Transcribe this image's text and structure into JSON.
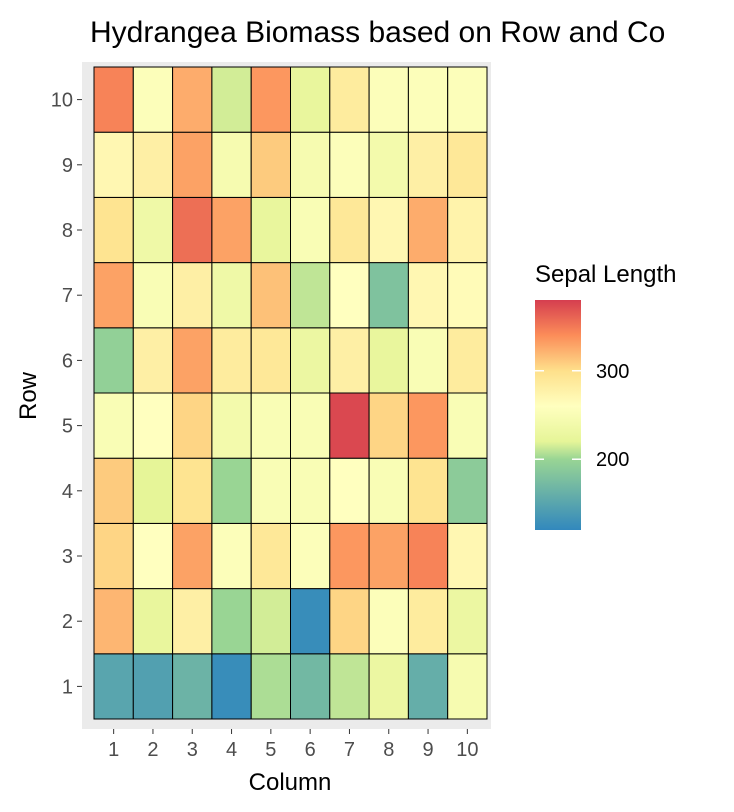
{
  "chart_data": {
    "type": "heatmap",
    "title": "Hydrangea Biomass based on Row and Co",
    "xlabel": "Column",
    "ylabel": "Row",
    "x_categories": [
      "1",
      "2",
      "3",
      "4",
      "5",
      "6",
      "7",
      "8",
      "9",
      "10"
    ],
    "y_categories": [
      "1",
      "2",
      "3",
      "4",
      "5",
      "6",
      "7",
      "8",
      "9",
      "10"
    ],
    "legend": {
      "title": "Sepal Length",
      "ticks": [
        200,
        300
      ],
      "range": [
        120,
        380
      ],
      "position": "right",
      "colors": [
        "#3288bd",
        "#99d594",
        "#e6f598",
        "#ffffbf",
        "#fee08b",
        "#fc8d59",
        "#d53e4f"
      ]
    },
    "panel_background": "#ebebeb",
    "rows": [
      {
        "row": "1",
        "values": [
          150,
          145,
          165,
          125,
          205,
          170,
          210,
          230,
          160,
          245
        ]
      },
      {
        "row": "2",
        "values": [
          320,
          225,
          280,
          200,
          215,
          125,
          305,
          255,
          285,
          230
        ]
      },
      {
        "row": "3",
        "values": [
          305,
          260,
          330,
          255,
          290,
          255,
          335,
          330,
          345,
          270
        ]
      },
      {
        "row": "4",
        "values": [
          310,
          220,
          295,
          200,
          250,
          250,
          260,
          250,
          295,
          190
        ]
      },
      {
        "row": "5",
        "values": [
          250,
          260,
          305,
          240,
          250,
          250,
          375,
          305,
          335,
          250
        ]
      },
      {
        "row": "6",
        "values": [
          195,
          280,
          330,
          285,
          290,
          230,
          280,
          225,
          250,
          285
        ]
      },
      {
        "row": "7",
        "values": [
          330,
          250,
          280,
          235,
          315,
          210,
          260,
          180,
          270,
          265
        ]
      },
      {
        "row": "8",
        "values": [
          295,
          235,
          355,
          330,
          225,
          250,
          290,
          270,
          325,
          275
        ]
      },
      {
        "row": "9",
        "values": [
          270,
          280,
          330,
          245,
          310,
          245,
          255,
          240,
          280,
          290
        ]
      },
      {
        "row": "10",
        "values": [
          345,
          255,
          325,
          215,
          335,
          225,
          285,
          255,
          255,
          255
        ]
      }
    ]
  }
}
